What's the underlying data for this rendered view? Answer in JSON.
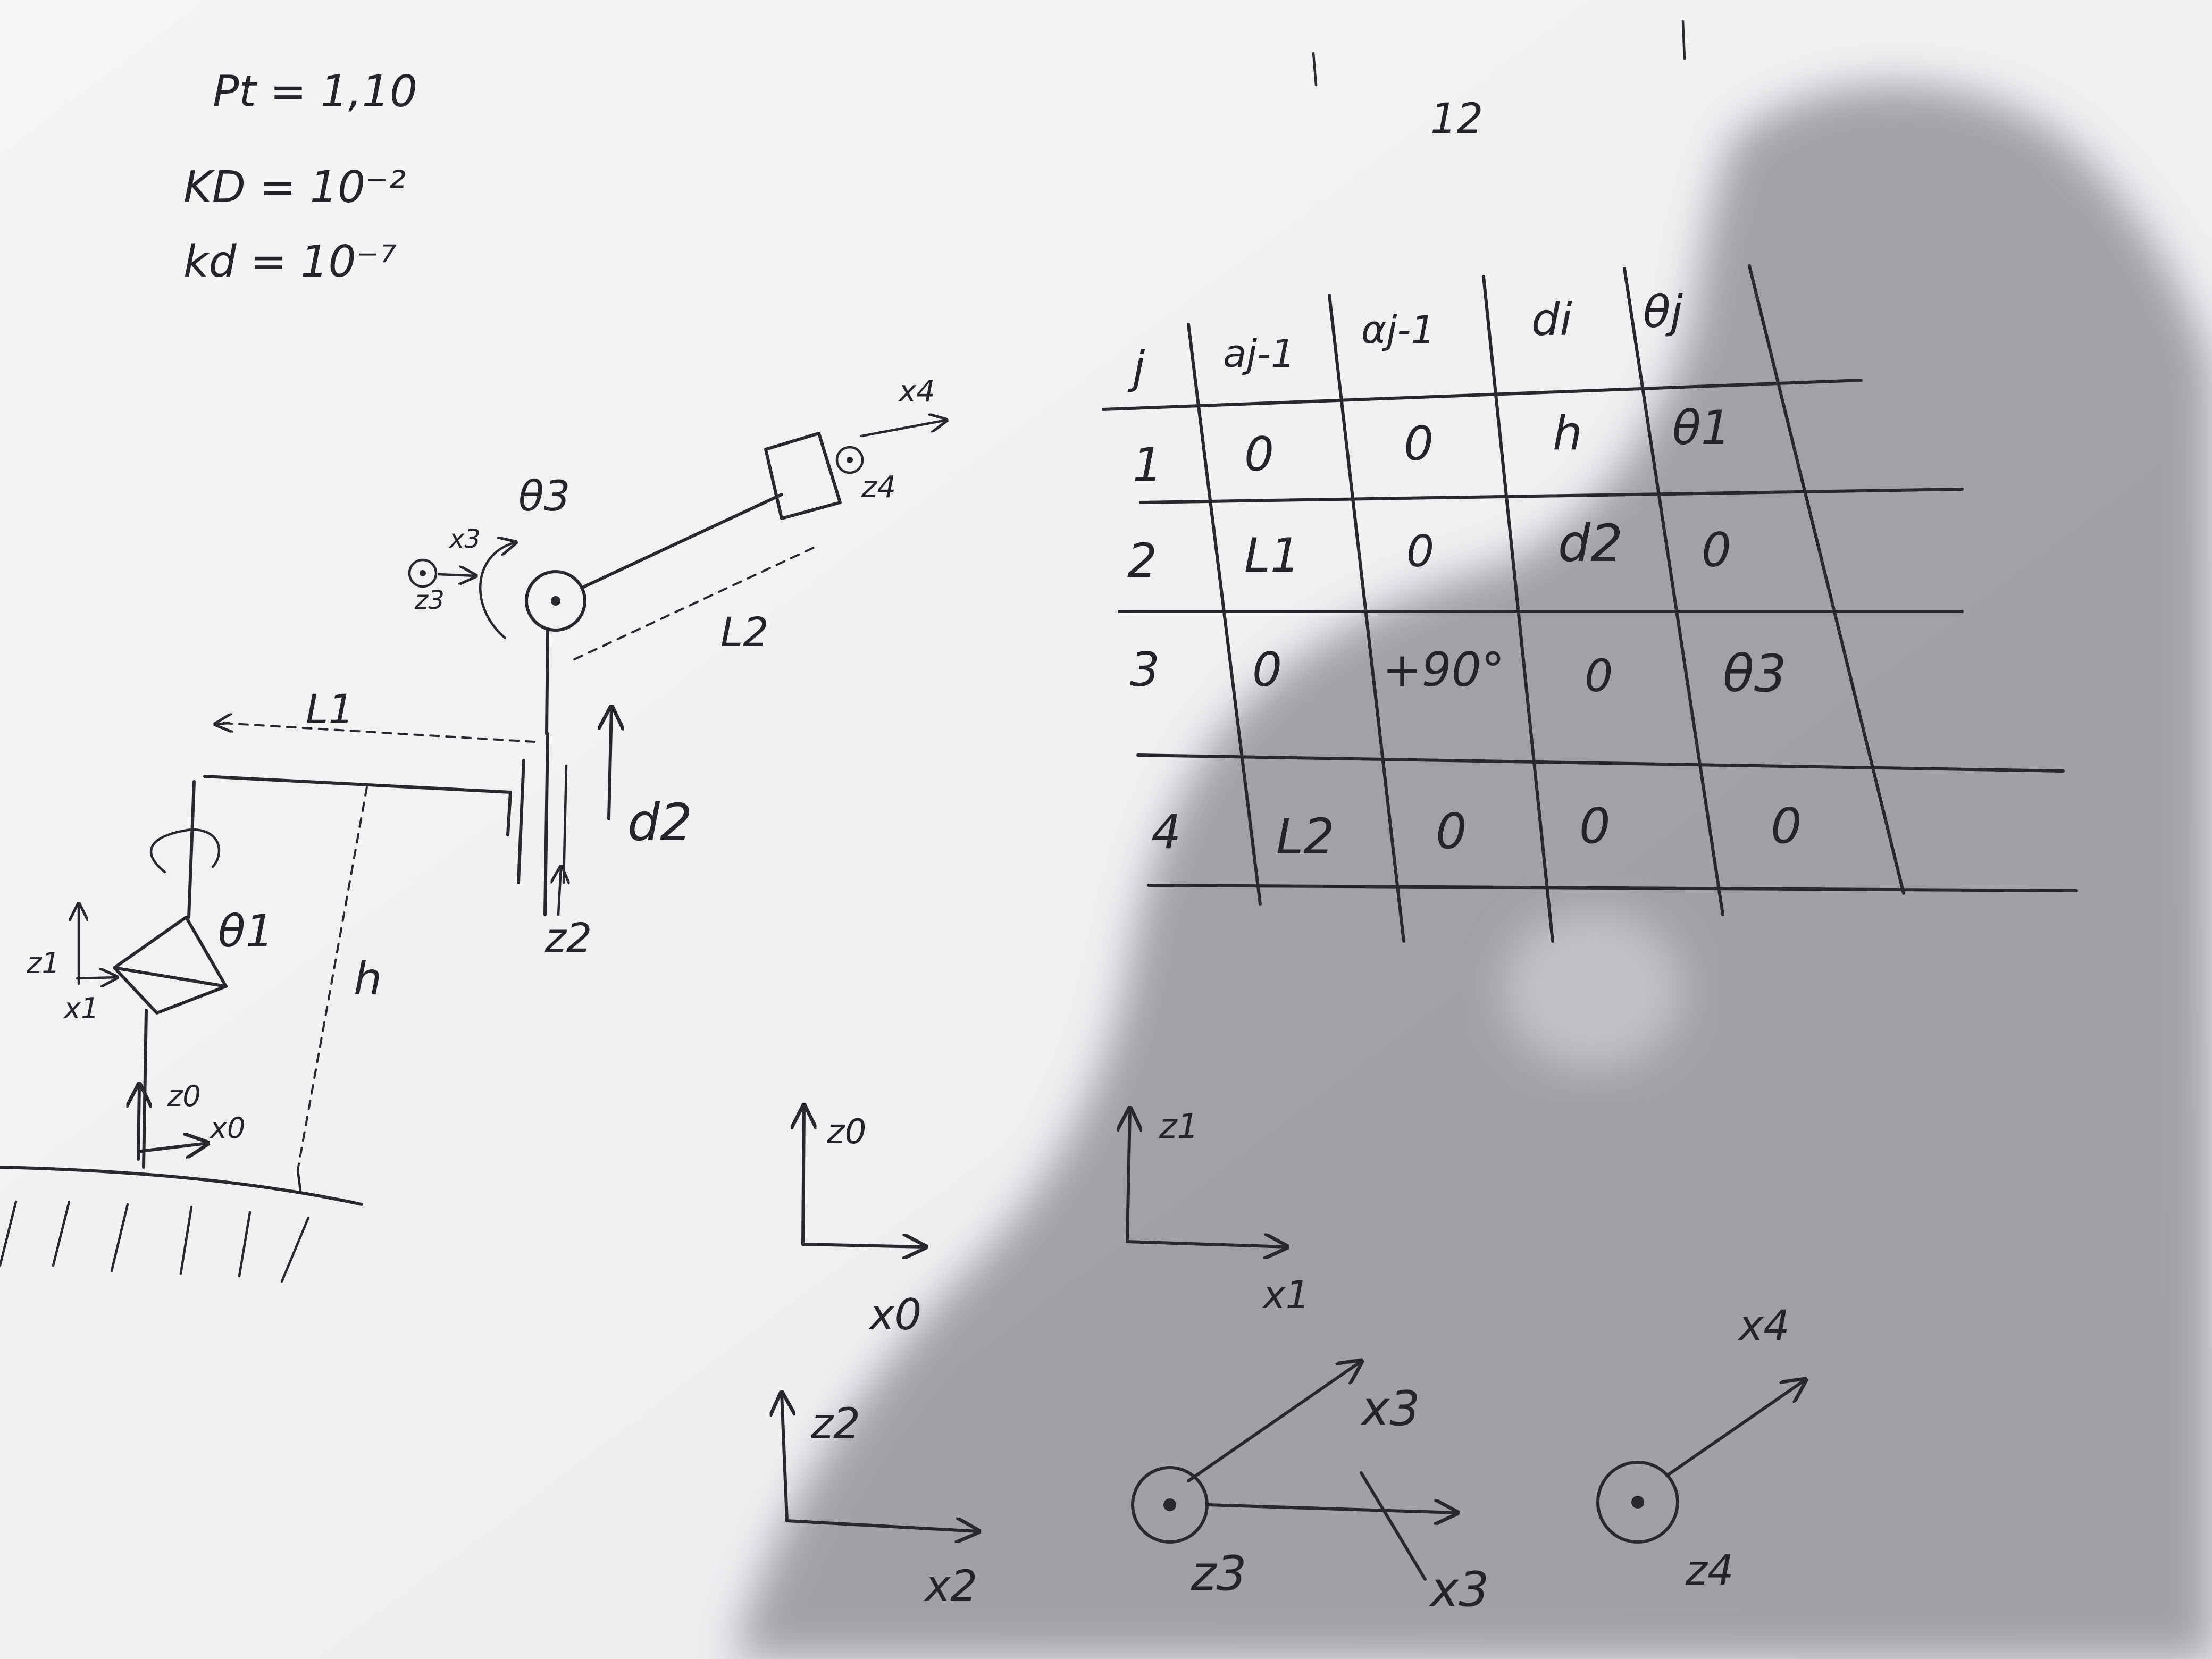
{
  "notes": {
    "page_number": "12",
    "params": [
      "Pt = 1,10",
      "KD = 10⁻²",
      "kd = 10⁻⁷"
    ]
  },
  "dh_table": {
    "headers": [
      "j",
      "aj-1",
      "αj-1",
      "di",
      "θj"
    ],
    "rows": [
      [
        "1",
        "0",
        "0",
        "h",
        "θ1"
      ],
      [
        "2",
        "L1",
        "0",
        "d2",
        "0"
      ],
      [
        "3",
        "0",
        "+90°",
        "0",
        "θ3"
      ],
      [
        "4",
        "L2",
        "0",
        "0",
        "0"
      ]
    ]
  },
  "robot_labels": {
    "theta1": "θ1",
    "theta3": "θ3",
    "h": "h",
    "L1": "L1",
    "L2": "L2",
    "d2": "d2",
    "z0": "z0",
    "x0": "x0",
    "z1": "z1",
    "x1": "x1",
    "z2": "z2",
    "x3": "x3",
    "z3": "z3",
    "x4": "x4",
    "z4": "z4"
  },
  "frames": [
    {
      "z": "z0",
      "x": "x0"
    },
    {
      "z": "z1",
      "x": "x1"
    },
    {
      "z": "z2",
      "x": "x2"
    },
    {
      "z": "z3",
      "x_up": "x3",
      "x_crossed": "x3"
    },
    {
      "z": "z4",
      "x": "x4"
    }
  ]
}
